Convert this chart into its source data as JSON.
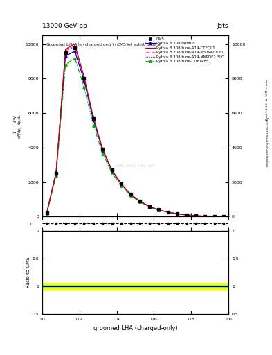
{
  "title_top": "13000 GeV pp",
  "title_right": "Jets",
  "plot_title": "Groomed LHA$\\lambda^{1}_{0.5}$ (charged only) (CMS jet substructure)",
  "xlabel": "groomed LHA (charged-only)",
  "ylabel_ratio": "Ratio to CMS",
  "watermark": "CMS_2021_THN_467",
  "x": [
    0.025,
    0.075,
    0.125,
    0.175,
    0.225,
    0.275,
    0.325,
    0.375,
    0.425,
    0.475,
    0.525,
    0.575,
    0.625,
    0.675,
    0.725,
    0.775,
    0.825,
    0.875,
    0.925,
    0.975
  ],
  "cms_data": [
    200,
    2500,
    9500,
    9800,
    8000,
    5700,
    3900,
    2700,
    1900,
    1300,
    900,
    600,
    400,
    270,
    170,
    100,
    55,
    25,
    8,
    1
  ],
  "cms_errors": [
    50,
    200,
    300,
    300,
    250,
    200,
    150,
    100,
    80,
    60,
    45,
    35,
    25,
    18,
    12,
    8,
    5,
    3,
    2,
    1
  ],
  "pythia_default": [
    220,
    2600,
    9300,
    9600,
    7900,
    5600,
    3850,
    2650,
    1880,
    1280,
    890,
    590,
    390,
    260,
    165,
    98,
    53,
    23,
    7,
    1
  ],
  "pythia_CTEQL1": [
    210,
    2550,
    9700,
    10000,
    8100,
    5750,
    3900,
    2680,
    1900,
    1290,
    895,
    595,
    393,
    262,
    167,
    99,
    54,
    24,
    7,
    1
  ],
  "pythia_MSTW2008LO": [
    215,
    2570,
    9650,
    9900,
    8050,
    5720,
    3880,
    2660,
    1890,
    1285,
    892,
    592,
    391,
    261,
    166,
    98,
    53,
    23,
    7,
    1
  ],
  "pythia_NNPDF23LO": [
    205,
    2530,
    9600,
    9850,
    8000,
    5680,
    3860,
    2640,
    1875,
    1275,
    885,
    587,
    388,
    258,
    164,
    97,
    52,
    23,
    7,
    1
  ],
  "pythia_CUETP8S1": [
    190,
    2400,
    8800,
    9200,
    7500,
    5300,
    3650,
    2520,
    1790,
    1220,
    850,
    565,
    375,
    250,
    158,
    94,
    50,
    22,
    6,
    1
  ],
  "colors": {
    "cms": "#000000",
    "default": "#0000cc",
    "CTEQL1": "#cc0000",
    "MSTW2008LO": "#ff69b4",
    "NNPDF23LO": "#ff00ff",
    "CUETP8S1": "#00aa00"
  },
  "ylim_main": [
    0,
    10500
  ],
  "ylim_ratio": [
    0.5,
    2.0
  ],
  "background_color": "#ffffff",
  "green_band": [
    0.97,
    1.03
  ],
  "yellow_band": [
    0.94,
    1.06
  ]
}
